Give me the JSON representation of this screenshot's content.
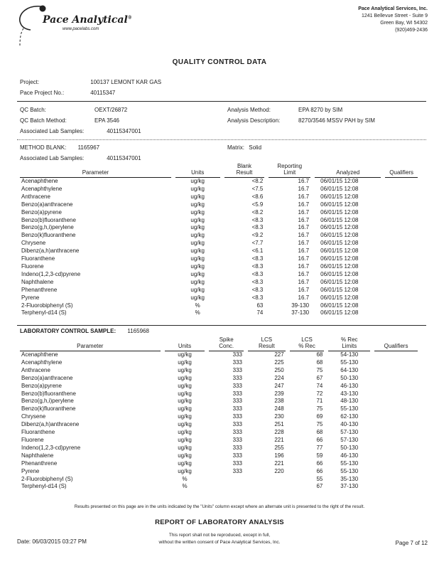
{
  "header": {
    "logo": {
      "brand": "Pace Analytical",
      "reg": "®",
      "website": "www.pacelabs.com"
    },
    "company": {
      "name": "Pace Analytical Services, Inc.",
      "address1": "1241 Bellevue Street - Suite 9",
      "address2": "Green Bay, WI 54302",
      "phone": "(920)469-2436"
    }
  },
  "title": "QUALITY CONTROL DATA",
  "project_info": {
    "project_label": "Project:",
    "project_value": "100137 LEMONT KAR GAS",
    "pace_no_label": "Pace Project No.:",
    "pace_no_value": "40115347"
  },
  "qc_info": {
    "qc_batch_label": "QC Batch:",
    "qc_batch_value": "OEXT/26872",
    "qc_batch_method_label": "QC Batch Method:",
    "qc_batch_method_value": "EPA 3546",
    "analysis_method_label": "Analysis Method:",
    "analysis_method_value": "EPA 8270 by SIM",
    "analysis_desc_label": "Analysis Description:",
    "analysis_desc_value": "8270/3546 MSSV PAH by SIM",
    "assoc_label": "Associated Lab Samples:",
    "assoc_value": "40115347001"
  },
  "method_blank": {
    "heading_label": "METHOD BLANK:",
    "heading_value": "1165967",
    "matrix_label": "Matrix:",
    "matrix_value": "Solid",
    "assoc_label": "Associated Lab Samples:",
    "assoc_value": "40115347001",
    "table": {
      "headers": [
        "Parameter",
        "Units",
        "Blank\nResult",
        "Reporting\nLimit",
        "Analyzed",
        "Qualifiers"
      ],
      "rows": [
        [
          "Acenaphthene",
          "ug/kg",
          "<8.2",
          "16.7",
          "06/01/15 12:08",
          ""
        ],
        [
          "Acenaphthylene",
          "ug/kg",
          "<7.5",
          "16.7",
          "06/01/15 12:08",
          ""
        ],
        [
          "Anthracene",
          "ug/kg",
          "<8.6",
          "16.7",
          "06/01/15 12:08",
          ""
        ],
        [
          "Benzo(a)anthracene",
          "ug/kg",
          "<5.9",
          "16.7",
          "06/01/15 12:08",
          ""
        ],
        [
          "Benzo(a)pyrene",
          "ug/kg",
          "<8.2",
          "16.7",
          "06/01/15 12:08",
          ""
        ],
        [
          "Benzo(b)fluoranthene",
          "ug/kg",
          "<8.3",
          "16.7",
          "06/01/15 12:08",
          ""
        ],
        [
          "Benzo(g,h,i)perylene",
          "ug/kg",
          "<8.3",
          "16.7",
          "06/01/15 12:08",
          ""
        ],
        [
          "Benzo(k)fluoranthene",
          "ug/kg",
          "<9.2",
          "16.7",
          "06/01/15 12:08",
          ""
        ],
        [
          "Chrysene",
          "ug/kg",
          "<7.7",
          "16.7",
          "06/01/15 12:08",
          ""
        ],
        [
          "Dibenz(a,h)anthracene",
          "ug/kg",
          "<6.1",
          "16.7",
          "06/01/15 12:08",
          ""
        ],
        [
          "Fluoranthene",
          "ug/kg",
          "<8.3",
          "16.7",
          "06/01/15 12:08",
          ""
        ],
        [
          "Fluorene",
          "ug/kg",
          "<8.3",
          "16.7",
          "06/01/15 12:08",
          ""
        ],
        [
          "Indeno(1,2,3-cd)pyrene",
          "ug/kg",
          "<8.3",
          "16.7",
          "06/01/15 12:08",
          ""
        ],
        [
          "Naphthalene",
          "ug/kg",
          "<8.3",
          "16.7",
          "06/01/15 12:08",
          ""
        ],
        [
          "Phenanthrene",
          "ug/kg",
          "<8.3",
          "16.7",
          "06/01/15 12:08",
          ""
        ],
        [
          "Pyrene",
          "ug/kg",
          "<8.3",
          "16.7",
          "06/01/15 12:08",
          ""
        ],
        [
          "2-Fluorobiphenyl (S)",
          "%",
          "63",
          "39-130",
          "06/01/15 12:08",
          ""
        ],
        [
          "Terphenyl-d14 (S)",
          "%",
          "74",
          "37-130",
          "06/01/15 12:08",
          ""
        ]
      ]
    }
  },
  "lcs": {
    "heading_label": "LABORATORY CONTROL SAMPLE:",
    "heading_value": "1165968",
    "table": {
      "headers": [
        "Parameter",
        "Units",
        "Spike\nConc.",
        "LCS\nResult",
        "LCS\n% Rec",
        "% Rec\nLimits",
        "Qualifiers"
      ],
      "rows": [
        [
          "Acenaphthene",
          "ug/kg",
          "333",
          "227",
          "68",
          "54-130",
          ""
        ],
        [
          "Acenaphthylene",
          "ug/kg",
          "333",
          "225",
          "68",
          "55-130",
          ""
        ],
        [
          "Anthracene",
          "ug/kg",
          "333",
          "250",
          "75",
          "64-130",
          ""
        ],
        [
          "Benzo(a)anthracene",
          "ug/kg",
          "333",
          "224",
          "67",
          "50-130",
          ""
        ],
        [
          "Benzo(a)pyrene",
          "ug/kg",
          "333",
          "247",
          "74",
          "46-130",
          ""
        ],
        [
          "Benzo(b)fluoranthene",
          "ug/kg",
          "333",
          "239",
          "72",
          "43-130",
          ""
        ],
        [
          "Benzo(g,h,i)perylene",
          "ug/kg",
          "333",
          "238",
          "71",
          "48-130",
          ""
        ],
        [
          "Benzo(k)fluoranthene",
          "ug/kg",
          "333",
          "248",
          "75",
          "55-130",
          ""
        ],
        [
          "Chrysene",
          "ug/kg",
          "333",
          "230",
          "69",
          "62-130",
          ""
        ],
        [
          "Dibenz(a,h)anthracene",
          "ug/kg",
          "333",
          "251",
          "75",
          "40-130",
          ""
        ],
        [
          "Fluoranthene",
          "ug/kg",
          "333",
          "228",
          "68",
          "57-130",
          ""
        ],
        [
          "Fluorene",
          "ug/kg",
          "333",
          "221",
          "66",
          "57-130",
          ""
        ],
        [
          "Indeno(1,2,3-cd)pyrene",
          "ug/kg",
          "333",
          "255",
          "77",
          "50-130",
          ""
        ],
        [
          "Naphthalene",
          "ug/kg",
          "333",
          "196",
          "59",
          "46-130",
          ""
        ],
        [
          "Phenanthrene",
          "ug/kg",
          "333",
          "221",
          "66",
          "55-130",
          ""
        ],
        [
          "Pyrene",
          "ug/kg",
          "333",
          "220",
          "66",
          "55-130",
          ""
        ],
        [
          "2-Fluorobiphenyl (S)",
          "%",
          "",
          "",
          "55",
          "35-130",
          ""
        ],
        [
          "Terphenyl-d14 (S)",
          "%",
          "",
          "",
          "67",
          "37-130",
          ""
        ]
      ]
    }
  },
  "footer": {
    "units_note": "Results presented on this page are in the units indicated by the \"Units\" column except where an alternate unit is presented to the right of the result.",
    "report_title": "REPORT OF LABORATORY ANALYSIS",
    "disclaimer_line1": "This report shall not be reproduced, except in full,",
    "disclaimer_line2": "without the written consent of Pace Analytical Services, Inc.",
    "date_label": "Date:",
    "date_value": "06/03/2015 03:27 PM",
    "page_label": "Page 7 of 12"
  }
}
